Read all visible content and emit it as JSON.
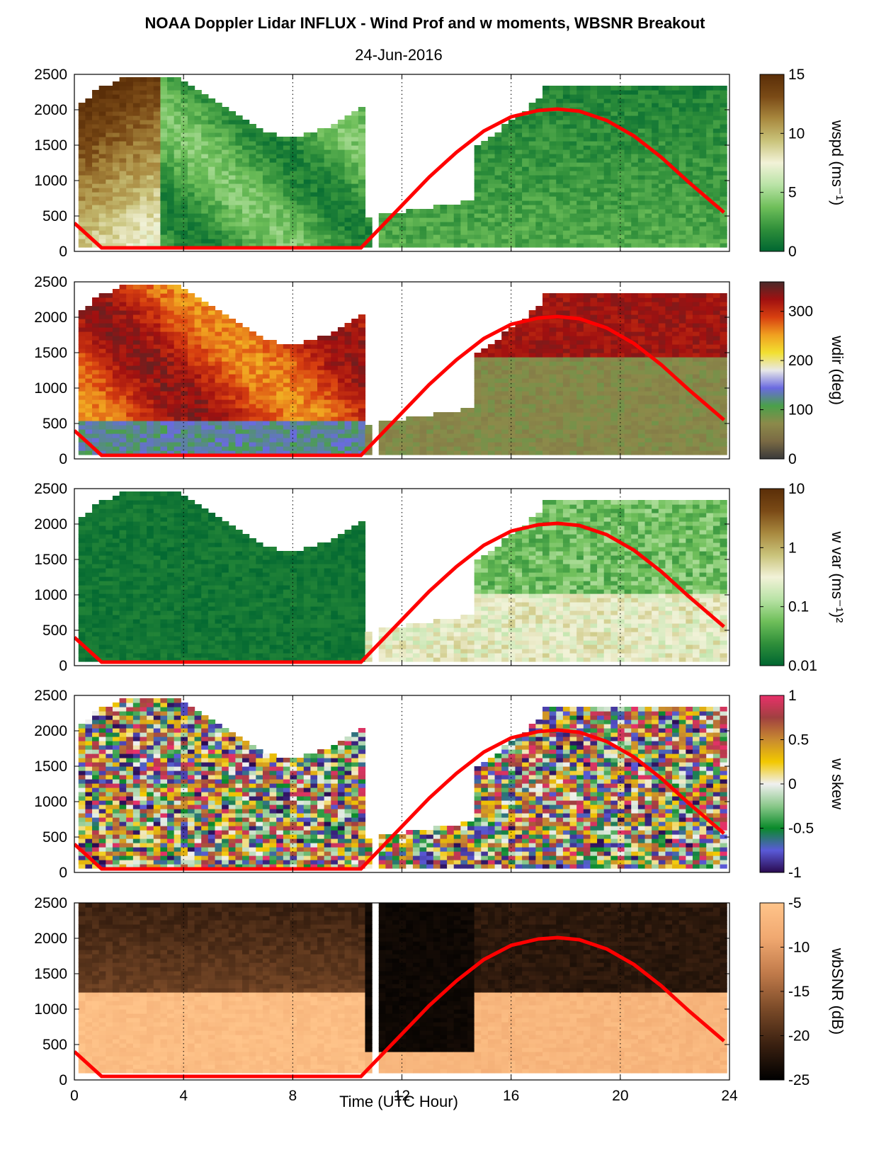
{
  "title": "NOAA Doppler Lidar INFLUX - Wind Prof and w moments, WBSNR Breakout",
  "subtitle": "24-Jun-2016",
  "xlabel": "Time (UTC Hour)",
  "chart_data": [
    {
      "type": "heatmap",
      "variable": "wspd",
      "colorbar_label": "wspd (ms⁻¹)",
      "colorbar_ticks": [
        "15",
        "10",
        "5",
        "0"
      ],
      "colorbar_range": [
        0,
        15
      ],
      "colormap": [
        "#006631",
        "#2f8f3a",
        "#6fbf5a",
        "#b9e3a6",
        "#f2f2d8",
        "#c9c37a",
        "#a8883e",
        "#7a4a16",
        "#5a2e08"
      ],
      "xlim": [
        0,
        24
      ],
      "ylim": [
        0,
        2500
      ],
      "xticks": [
        "0",
        "4",
        "8",
        "12",
        "16",
        "20",
        "24"
      ],
      "yticks": [
        "0",
        "500",
        "1000",
        "1500",
        "2000",
        "2500"
      ]
    },
    {
      "type": "heatmap",
      "variable": "wdir",
      "colorbar_label": "wdir (deg)",
      "colorbar_ticks": [
        "300",
        "200",
        "100",
        "0"
      ],
      "colorbar_range": [
        0,
        360
      ],
      "colormap": [
        "#3a3a3a",
        "#7a6a44",
        "#8c8a4a",
        "#4aa04a",
        "#6a6ae0",
        "#e8e8e8",
        "#f2e030",
        "#f0a020",
        "#d84010",
        "#a01010",
        "#4a2a2a"
      ],
      "xlim": [
        0,
        24
      ],
      "ylim": [
        0,
        2500
      ],
      "xticks": [
        "0",
        "4",
        "8",
        "12",
        "16",
        "20",
        "24"
      ],
      "yticks": [
        "0",
        "500",
        "1000",
        "1500",
        "2000",
        "2500"
      ]
    },
    {
      "type": "heatmap",
      "variable": "w var",
      "colorbar_label": "w var (ms⁻¹)²",
      "colorbar_ticks": [
        "10",
        "1",
        "0.1",
        "0.01"
      ],
      "colorbar_range": [
        0.01,
        10
      ],
      "colorbar_scale": "log",
      "colormap": [
        "#006631",
        "#2f8f3a",
        "#6fbf5a",
        "#b9e3a6",
        "#f2f2d8",
        "#c9c37a",
        "#a8883e",
        "#7a4a16",
        "#5a2e08"
      ],
      "xlim": [
        0,
        24
      ],
      "ylim": [
        0,
        2500
      ],
      "xticks": [
        "0",
        "4",
        "8",
        "12",
        "16",
        "20",
        "24"
      ],
      "yticks": [
        "0",
        "500",
        "1000",
        "1500",
        "2000",
        "2500"
      ]
    },
    {
      "type": "heatmap",
      "variable": "w skew",
      "colorbar_label": "w skew",
      "colorbar_ticks": [
        "1",
        "0.5",
        "0",
        "-0.5",
        "-1"
      ],
      "colorbar_range": [
        -1,
        1
      ],
      "colormap": [
        "#2a0a50",
        "#5a5ad8",
        "#0a8a2a",
        "#8ac88a",
        "#f0f0f0",
        "#f2c800",
        "#c88a30",
        "#a04040",
        "#e8306a"
      ],
      "xlim": [
        0,
        24
      ],
      "ylim": [
        0,
        2500
      ],
      "xticks": [
        "0",
        "4",
        "8",
        "12",
        "16",
        "20",
        "24"
      ],
      "yticks": [
        "0",
        "500",
        "1000",
        "1500",
        "2000",
        "2500"
      ]
    },
    {
      "type": "heatmap",
      "variable": "wbSNR",
      "colorbar_label": "wbSNR (dB)",
      "colorbar_ticks": [
        "-5",
        "-10",
        "-15",
        "-20",
        "-25"
      ],
      "colorbar_range": [
        -25,
        -5
      ],
      "colormap": [
        "#000000",
        "#3a2010",
        "#7a4a28",
        "#c07a4a",
        "#f0a870",
        "#ffc48a"
      ],
      "xlim": [
        0,
        24
      ],
      "ylim": [
        0,
        2500
      ],
      "xticks": [
        "0",
        "4",
        "8",
        "12",
        "16",
        "20",
        "24"
      ],
      "yticks": [
        "0",
        "500",
        "1000",
        "1500",
        "2000",
        "2500"
      ]
    }
  ],
  "boundary_layer_curve": {
    "color": "#ff0000",
    "x": [
      0,
      1,
      1.5,
      10.5,
      12,
      13,
      14,
      15,
      16,
      17,
      17.7,
      18.5,
      19.5,
      20.5,
      21.5,
      22.5,
      23.8
    ],
    "y": [
      400,
      50,
      50,
      50,
      650,
      1050,
      1400,
      1700,
      1900,
      1990,
      2010,
      1980,
      1850,
      1630,
      1330,
      980,
      550
    ]
  }
}
